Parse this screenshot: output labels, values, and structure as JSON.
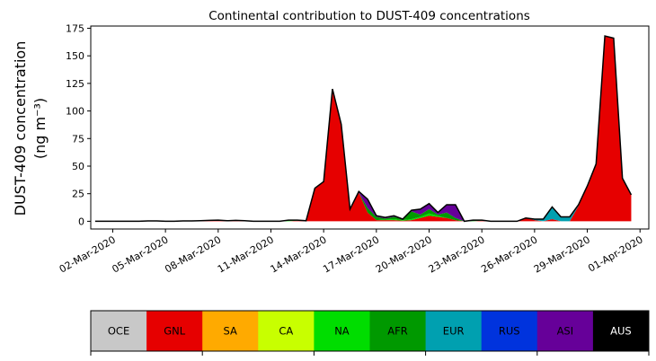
{
  "chart_data": {
    "type": "area",
    "stacked": true,
    "title": "Continental contribution to DUST-409 concentrations",
    "ylabel": "DUST-409 concentration",
    "ylabel_unit": "(ng m⁻³)",
    "ylim": [
      -7,
      177
    ],
    "yticks": [
      0,
      25,
      50,
      75,
      100,
      125,
      150,
      175
    ],
    "xticks": [
      "02-Mar-2020",
      "05-Mar-2020",
      "08-Mar-2020",
      "11-Mar-2020",
      "14-Mar-2020",
      "17-Mar-2020",
      "20-Mar-2020",
      "23-Mar-2020",
      "26-Mar-2020",
      "29-Mar-2020",
      "01-Apr-2020"
    ],
    "xlim": [
      "2020-02-29 18:00",
      "2020-04-01 12:00"
    ],
    "x_start": "2020-03-01",
    "x": [
      "2020-03-01",
      "2020-03-01 12:00",
      "2020-03-02",
      "2020-03-02 12:00",
      "2020-03-03",
      "2020-03-03 12:00",
      "2020-03-04",
      "2020-03-04 12:00",
      "2020-03-05",
      "2020-03-05 12:00",
      "2020-03-06",
      "2020-03-06 12:00",
      "2020-03-07",
      "2020-03-07 12:00",
      "2020-03-08",
      "2020-03-08 12:00",
      "2020-03-09",
      "2020-03-09 12:00",
      "2020-03-10",
      "2020-03-10 12:00",
      "2020-03-11",
      "2020-03-11 12:00",
      "2020-03-12",
      "2020-03-12 12:00",
      "2020-03-13",
      "2020-03-13 12:00",
      "2020-03-14",
      "2020-03-14 12:00",
      "2020-03-15",
      "2020-03-15 12:00",
      "2020-03-16",
      "2020-03-16 12:00",
      "2020-03-17",
      "2020-03-17 12:00",
      "2020-03-18",
      "2020-03-18 12:00",
      "2020-03-19",
      "2020-03-19 12:00",
      "2020-03-20",
      "2020-03-20 12:00",
      "2020-03-21",
      "2020-03-21 12:00",
      "2020-03-22",
      "2020-03-22 12:00",
      "2020-03-23",
      "2020-03-23 12:00",
      "2020-03-24",
      "2020-03-24 12:00",
      "2020-03-25",
      "2020-03-25 12:00",
      "2020-03-26",
      "2020-03-26 12:00",
      "2020-03-27",
      "2020-03-27 12:00",
      "2020-03-28",
      "2020-03-28 12:00",
      "2020-03-29",
      "2020-03-29 12:00",
      "2020-03-30",
      "2020-03-30 12:00",
      "2020-03-31",
      "2020-03-31 12:00"
    ],
    "series": [
      {
        "name": "OCE",
        "color": "#c8c8c8",
        "values": [
          0,
          0,
          0,
          0,
          0,
          0,
          0,
          0,
          0,
          0,
          0,
          0,
          0,
          0,
          0,
          0,
          0,
          0,
          0,
          0,
          0,
          0,
          0,
          0,
          0,
          0,
          0,
          0,
          0,
          0,
          0,
          0,
          0,
          0,
          0,
          0,
          0,
          0,
          0,
          0,
          0,
          0,
          0,
          0,
          0,
          0,
          0,
          0,
          0,
          0,
          0,
          0,
          0,
          0,
          0,
          0,
          0,
          0,
          0,
          0,
          0,
          0
        ]
      },
      {
        "name": "GNL",
        "color": "#e60000",
        "values": [
          0,
          0,
          0,
          0,
          0,
          0,
          0.3,
          0.3,
          0,
          0,
          0.3,
          0.3,
          0.5,
          0.8,
          1.0,
          0.5,
          0.8,
          0.5,
          0,
          0,
          0,
          0,
          0,
          0.5,
          0.5,
          30,
          36,
          120,
          88,
          11,
          26,
          8,
          1,
          1,
          1,
          0.5,
          1,
          3,
          5,
          4,
          3,
          1,
          0,
          0,
          0.5,
          0,
          0,
          0,
          0,
          3,
          1,
          0,
          2,
          0,
          0,
          14,
          32,
          52,
          168,
          166,
          39,
          24
        ]
      },
      {
        "name": "SA",
        "color": "#ffaa00",
        "values": [
          0,
          0,
          0,
          0,
          0,
          0,
          0,
          0,
          0,
          0,
          0,
          0,
          0,
          0,
          0,
          0,
          0,
          0,
          0,
          0,
          0,
          0,
          0,
          0,
          0,
          0,
          0,
          0,
          0,
          0,
          0,
          0,
          0,
          0,
          0,
          0,
          0,
          0,
          0,
          0,
          0,
          0,
          0,
          0,
          0,
          0,
          0,
          0,
          0,
          0,
          0,
          0,
          0,
          0,
          0,
          0,
          0,
          0,
          0,
          0,
          0,
          0
        ]
      },
      {
        "name": "CA",
        "color": "#c8ff00",
        "values": [
          0,
          0,
          0,
          0,
          0,
          0,
          0,
          0,
          0,
          0,
          0,
          0,
          0,
          0,
          0,
          0,
          0,
          0,
          0,
          0,
          0,
          0,
          0,
          0,
          0,
          0,
          0,
          0,
          0,
          0,
          0,
          0,
          0,
          0,
          0,
          0,
          0,
          0,
          0,
          0,
          0,
          0,
          0,
          0,
          0,
          0,
          0,
          0,
          0,
          0,
          0,
          0,
          0,
          0,
          0,
          0,
          0,
          0,
          0,
          0,
          0,
          0
        ]
      },
      {
        "name": "NA",
        "color": "#00dd00",
        "values": [
          0,
          0,
          0,
          0,
          0,
          0,
          0,
          0,
          0,
          0,
          0,
          0,
          0,
          0,
          0,
          0,
          0,
          0,
          0,
          0,
          0,
          0,
          1,
          0.5,
          0,
          0,
          0,
          0,
          0,
          0,
          0,
          0,
          0,
          0.5,
          1,
          0.5,
          1,
          1,
          2,
          1,
          0,
          0,
          0,
          0,
          0,
          0,
          0,
          0,
          0,
          0,
          0,
          0,
          0,
          0,
          0,
          0,
          0,
          0,
          0,
          0,
          0,
          0
        ]
      },
      {
        "name": "AFR",
        "color": "#009900",
        "values": [
          0,
          0,
          0,
          0,
          0,
          0,
          0,
          0,
          0,
          0,
          0,
          0,
          0,
          0,
          0,
          0,
          0,
          0,
          0,
          0,
          0,
          0,
          0,
          0,
          0,
          0,
          0,
          0,
          0,
          0,
          0,
          4,
          3,
          1,
          2,
          1,
          7,
          2,
          4,
          1,
          5,
          2,
          0,
          1,
          0.5,
          0,
          0,
          0,
          0,
          0,
          0,
          0,
          0,
          0,
          0,
          0,
          0,
          0,
          0,
          0,
          0,
          0
        ]
      },
      {
        "name": "EUR",
        "color": "#00a0b0",
        "values": [
          0,
          0,
          0,
          0,
          0,
          0,
          0,
          0,
          0,
          0,
          0,
          0,
          0,
          0,
          0,
          0,
          0,
          0,
          0,
          0,
          0,
          0,
          0,
          0,
          0,
          0,
          0,
          0,
          0,
          0,
          0,
          0,
          0,
          0,
          0,
          0,
          0,
          0,
          0,
          0,
          0,
          0,
          0,
          0,
          0,
          0,
          0,
          0,
          0,
          0,
          1,
          2,
          11,
          4,
          4,
          1,
          0,
          0,
          0,
          0,
          0,
          0
        ]
      },
      {
        "name": "RUS",
        "color": "#0033dd",
        "values": [
          0,
          0,
          0,
          0,
          0,
          0,
          0,
          0,
          0,
          0,
          0,
          0,
          0,
          0,
          0,
          0,
          0,
          0,
          0,
          0,
          0,
          0,
          0,
          0,
          0,
          0,
          0,
          0,
          0,
          0,
          0,
          0,
          0,
          0,
          0,
          0,
          0,
          0,
          0,
          0,
          0,
          0,
          0,
          0,
          0,
          0,
          0,
          0,
          0,
          0,
          0,
          0,
          0,
          0,
          0,
          0,
          0,
          0,
          0,
          0,
          0,
          0
        ]
      },
      {
        "name": "ASI",
        "color": "#660099",
        "values": [
          0,
          0,
          0,
          0,
          0,
          0,
          0,
          0,
          0,
          0,
          0,
          0,
          0,
          0,
          0,
          0,
          0,
          0,
          0,
          0,
          0,
          0,
          0,
          0,
          0,
          0,
          0,
          0,
          0,
          0,
          1,
          8,
          1,
          1,
          1,
          0,
          1,
          5,
          5,
          2,
          7,
          12,
          0,
          0,
          0,
          0,
          0,
          0,
          0,
          0,
          0,
          0,
          0,
          0,
          0,
          0,
          0,
          0,
          0,
          0,
          0,
          0
        ]
      },
      {
        "name": "AUS",
        "color": "#000000",
        "values": [
          0,
          0,
          0,
          0,
          0,
          0,
          0,
          0,
          0,
          0,
          0,
          0,
          0,
          0,
          0,
          0,
          0,
          0,
          0,
          0,
          0,
          0,
          0,
          0,
          0,
          0,
          0,
          0,
          0,
          0,
          0,
          0,
          0,
          0,
          0,
          0,
          0,
          0,
          0,
          0,
          0,
          0,
          0,
          0,
          0,
          0,
          0,
          0,
          0,
          0,
          0,
          0,
          0,
          0,
          0,
          0,
          0,
          0,
          0,
          0,
          0,
          0
        ]
      }
    ],
    "legend": {
      "placement": "bottom colorbar",
      "items": [
        {
          "label": "OCE",
          "color": "#c8c8c8",
          "text_color": "#000000"
        },
        {
          "label": "GNL",
          "color": "#e60000",
          "text_color": "#000000"
        },
        {
          "label": "SA",
          "color": "#ffaa00",
          "text_color": "#000000"
        },
        {
          "label": "CA",
          "color": "#c8ff00",
          "text_color": "#000000"
        },
        {
          "label": "NA",
          "color": "#00dd00",
          "text_color": "#000000"
        },
        {
          "label": "AFR",
          "color": "#009900",
          "text_color": "#000000"
        },
        {
          "label": "EUR",
          "color": "#00a0b0",
          "text_color": "#000000"
        },
        {
          "label": "RUS",
          "color": "#0033dd",
          "text_color": "#000000"
        },
        {
          "label": "ASI",
          "color": "#660099",
          "text_color": "#000000"
        },
        {
          "label": "AUS",
          "color": "#000000",
          "text_color": "#ffffff"
        }
      ]
    },
    "grid": false
  }
}
